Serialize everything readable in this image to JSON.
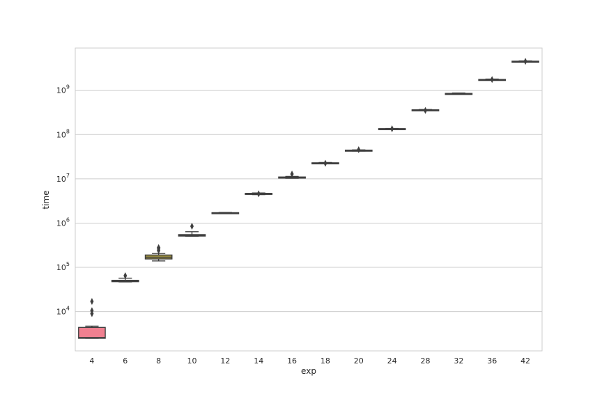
{
  "chart_data": {
    "type": "boxplot",
    "xlabel": "exp",
    "ylabel": "time",
    "yscale": "log",
    "ylim": [
      1300,
      9000000000
    ],
    "grid": "horizontal",
    "yticks": [
      {
        "value": 10000,
        "base": "10",
        "exp": "4"
      },
      {
        "value": 100000,
        "base": "10",
        "exp": "5"
      },
      {
        "value": 1000000,
        "base": "10",
        "exp": "6"
      },
      {
        "value": 10000000,
        "base": "10",
        "exp": "7"
      },
      {
        "value": 100000000,
        "base": "10",
        "exp": "8"
      },
      {
        "value": 1000000000,
        "base": "10",
        "exp": "9"
      }
    ],
    "categories": [
      "4",
      "6",
      "8",
      "10",
      "12",
      "14",
      "16",
      "18",
      "20",
      "24",
      "28",
      "32",
      "36",
      "42"
    ],
    "boxes": [
      {
        "category": "4",
        "whisker_low": 2500,
        "q1": 2500,
        "median": 2600,
        "q3": 4400,
        "whisker_high": 4700,
        "outliers": [
          9000,
          10500,
          17000
        ],
        "color": "#f08090"
      },
      {
        "category": "6",
        "whisker_low": 47000,
        "q1": 47500,
        "median": 49000,
        "q3": 51000,
        "whisker_high": 57000,
        "outliers": [
          65000
        ],
        "color": "#c08c3c"
      },
      {
        "category": "8",
        "whisker_low": 140000,
        "q1": 155000,
        "median": 170000,
        "q3": 190000,
        "whisker_high": 205000,
        "outliers": [
          240000,
          260000,
          280000
        ],
        "color": "#a89a40"
      },
      {
        "category": "10",
        "whisker_low": 505000,
        "q1": 510000,
        "median": 530000,
        "q3": 550000,
        "whisker_high": 640000,
        "outliers": [
          850000
        ],
        "color": "#7da85a"
      },
      {
        "category": "12",
        "whisker_low": 1660000,
        "q1": 1670000,
        "median": 1690000,
        "q3": 1720000,
        "whisker_high": 1740000,
        "outliers": [],
        "color": "#4ea87c"
      },
      {
        "category": "14",
        "whisker_low": 4400000,
        "q1": 4450000,
        "median": 4550000,
        "q3": 4700000,
        "whisker_high": 4800000,
        "outliers": [
          4600000
        ],
        "color": "#40a8a0"
      },
      {
        "category": "16",
        "whisker_low": 10300000,
        "q1": 10400000,
        "median": 10700000,
        "q3": 11000000,
        "whisker_high": 11300000,
        "outliers": [
          12800000
        ],
        "color": "#40a0c0"
      },
      {
        "category": "18",
        "whisker_low": 22000000,
        "q1": 22200000,
        "median": 22600000,
        "q3": 23000000,
        "whisker_high": 23300000,
        "outliers": [
          22500000
        ],
        "color": "#4a94d8"
      },
      {
        "category": "20",
        "whisker_low": 42500000,
        "q1": 43000000,
        "median": 43500000,
        "q3": 44500000,
        "whisker_high": 45000000,
        "outliers": [
          45500000
        ],
        "color": "#8a8ae0"
      },
      {
        "category": "24",
        "whisker_low": 132000000,
        "q1": 133000000,
        "median": 134000000,
        "q3": 136000000,
        "whisker_high": 137000000,
        "outliers": [
          135000000
        ],
        "color": "#b87ad8"
      },
      {
        "category": "28",
        "whisker_low": 350000000,
        "q1": 352000000,
        "median": 357000000,
        "q3": 362000000,
        "whisker_high": 368000000,
        "outliers": [
          350000000
        ],
        "color": "#d870c0"
      },
      {
        "category": "32",
        "whisker_low": 820000000,
        "q1": 825000000,
        "median": 835000000,
        "q3": 850000000,
        "whisker_high": 870000000,
        "outliers": [],
        "color": "#e070a0"
      },
      {
        "category": "36",
        "whisker_low": 1700000000,
        "q1": 1710000000,
        "median": 1730000000,
        "q3": 1760000000,
        "whisker_high": 1790000000,
        "outliers": [
          1750000000
        ],
        "color": "#e8748c"
      },
      {
        "category": "42",
        "whisker_low": 4400000000,
        "q1": 4420000000,
        "median": 4480000000,
        "q3": 4560000000,
        "whisker_high": 4620000000,
        "outliers": [
          4500000000
        ],
        "color": "#f08090"
      }
    ]
  }
}
